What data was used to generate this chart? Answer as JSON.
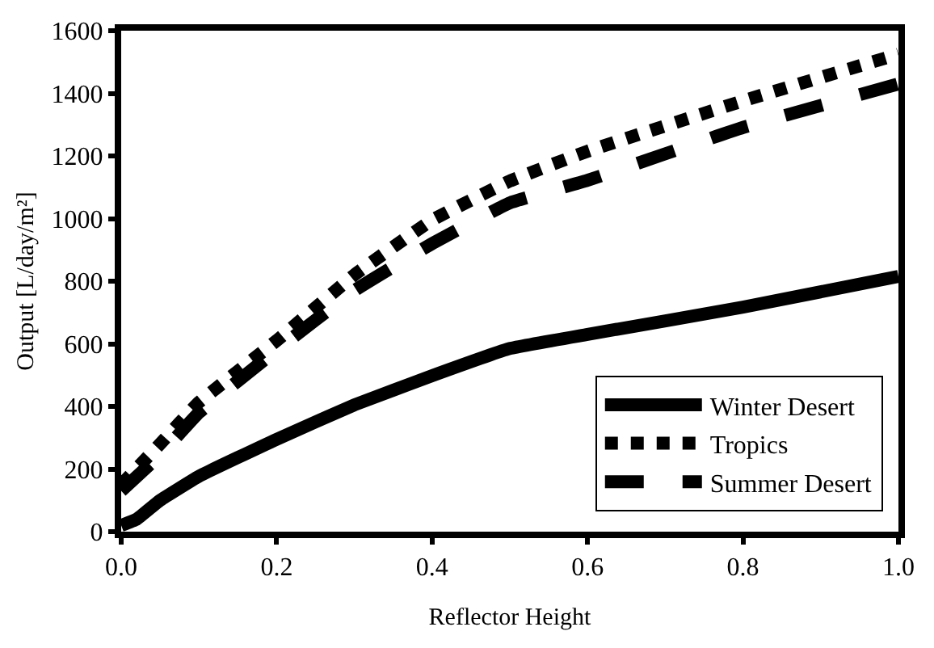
{
  "chart_data": {
    "type": "line",
    "xlabel": "Reflector Height",
    "ylabel": "Output [L/day/m²]",
    "xlim": [
      0,
      1
    ],
    "xticks": [
      {
        "value": 0,
        "label": "0.0"
      },
      {
        "value": 0.2,
        "label": "0.2"
      },
      {
        "value": 0.4,
        "label": "0.4"
      },
      {
        "value": 0.6,
        "label": "0.6"
      },
      {
        "value": 0.8,
        "label": "0.8"
      },
      {
        "value": 1,
        "label": "1.0"
      }
    ],
    "ylim": [
      0,
      1600
    ],
    "yticks": [
      0,
      200,
      400,
      600,
      800,
      1000,
      1200,
      1400,
      1600
    ],
    "legend": "bottom right",
    "marker": "none",
    "series": [
      {
        "name": "Winter Desert",
        "color": "#000000",
        "line_style": "solid",
        "x": [
          0,
          0.02,
          0.05,
          0.1,
          0.2,
          0.3,
          0.4,
          0.5,
          0.6,
          0.8,
          1.0
        ],
        "values": [
          20,
          40,
          100,
          177,
          295,
          405,
          498,
          585,
          630,
          717,
          815
        ]
      },
      {
        "name": "Tropics",
        "color": "#000000",
        "line_style": "dotted",
        "x": [
          0,
          0.05,
          0.1,
          0.2,
          0.3,
          0.4,
          0.5,
          0.6,
          0.8,
          1.0
        ],
        "values": [
          150,
          280,
          413,
          610,
          820,
          995,
          1120,
          1215,
          1376,
          1525
        ]
      },
      {
        "name": "Summer Desert",
        "color": "#000000",
        "line_style": "dashed",
        "x": [
          0,
          0.05,
          0.1,
          0.2,
          0.3,
          0.4,
          0.5,
          0.6,
          0.8,
          1.0
        ],
        "values": [
          130,
          245,
          380,
          580,
          770,
          920,
          1050,
          1122,
          1291,
          1430
        ]
      }
    ]
  }
}
